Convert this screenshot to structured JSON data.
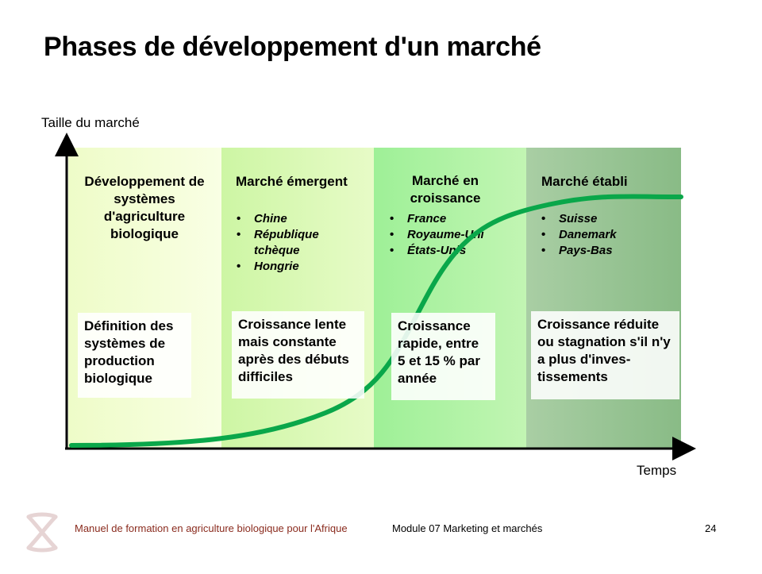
{
  "title": "Phases de développement d'un marché",
  "ylabel": "Taille du marché",
  "xlabel": "Temps",
  "phases": [
    {
      "title": "Développement de systèmes d'agriculture biologique",
      "countries": [],
      "description": "Définition des systèmes de production biologique"
    },
    {
      "title": "Marché émergent",
      "countries": [
        "Chine",
        "République tchèque",
        "Hongrie"
      ],
      "description": "Croissance lente mais constante après des débuts difficiles"
    },
    {
      "title": "Marché en croissance",
      "countries": [
        "France",
        "Royaume-Uni",
        "États-Unis"
      ],
      "description": "Croissance rapide, entre 5 et 15 % par année"
    },
    {
      "title": "Marché établi",
      "countries": [
        "Suisse",
        "Danemark",
        "Pays-Bas"
      ],
      "description": "Croissance réduite ou stagnation s'il n'y a plus d'inves- tissements"
    }
  ],
  "colors": {
    "curve": "#0aa74a",
    "footer_text": "#8a2b1e"
  },
  "footer": {
    "manual": "Manuel de formation en agriculture biologique pour l'Afrique",
    "module": "Module 07 Marketing et marchés",
    "page": "24"
  }
}
